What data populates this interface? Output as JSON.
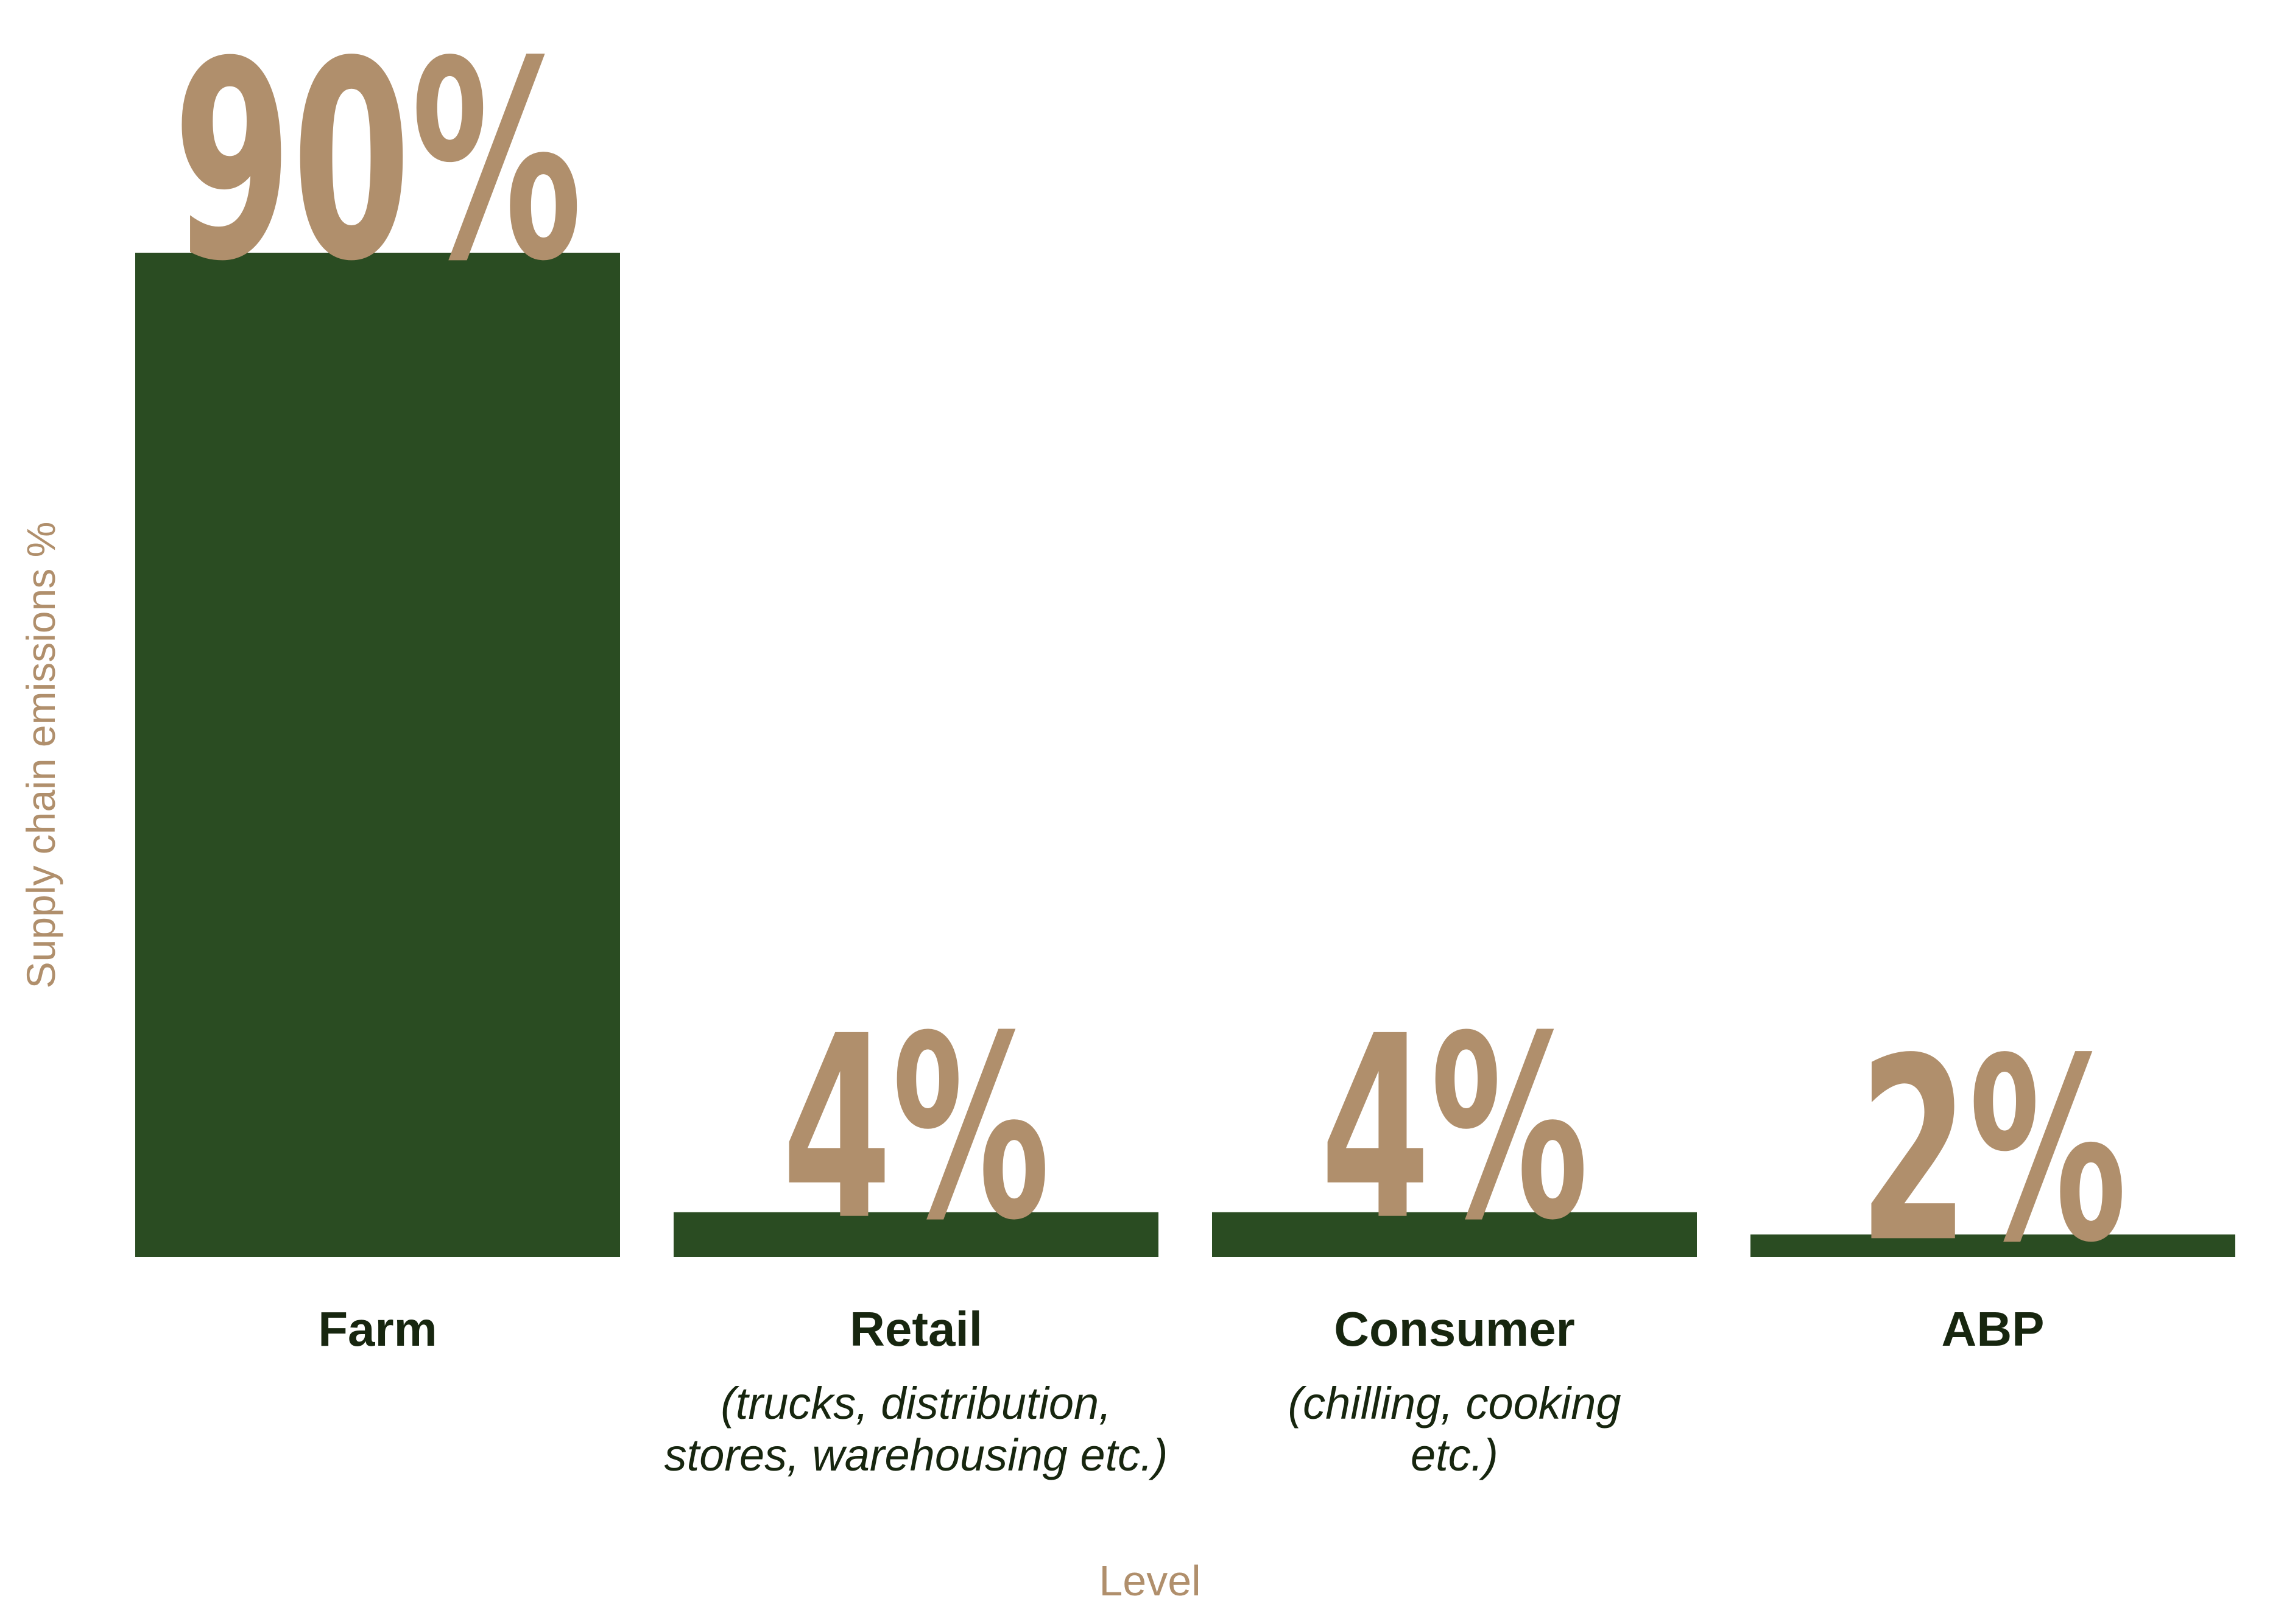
{
  "chart_data": {
    "type": "bar",
    "categories": [
      "Farm",
      "Retail",
      "Consumer",
      "ABP"
    ],
    "category_notes": [
      [],
      [
        "(trucks, distribution,",
        "stores, warehousing etc.)"
      ],
      [
        "(chilling, cooking",
        "etc.)"
      ],
      []
    ],
    "values": [
      90,
      4,
      4,
      2
    ],
    "value_labels": [
      "90%",
      "4%",
      "4%",
      "2%"
    ],
    "xlabel": "Level",
    "ylabel": "Supply chain emissions %",
    "ylim": [
      0,
      100
    ],
    "grid": false,
    "legend": "none"
  },
  "colors": {
    "bar": "#2a4c22",
    "value_label": "#b08f6c",
    "axis_title": "#b08f6c",
    "category_label": "#17260f"
  }
}
